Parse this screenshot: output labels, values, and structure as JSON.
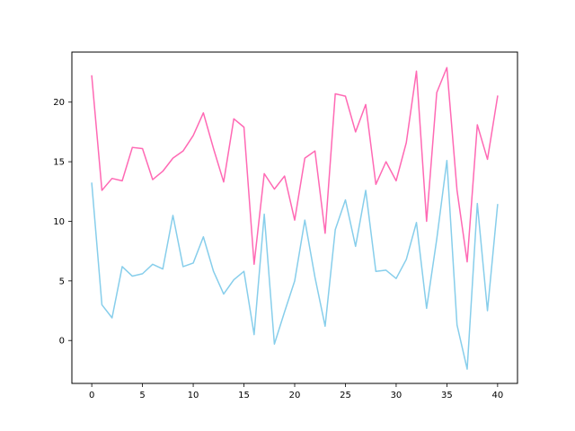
{
  "chart_data": {
    "type": "line",
    "title": "",
    "xlabel": "",
    "ylabel": "",
    "xlim": [
      -1.96,
      41.96
    ],
    "ylim": [
      -3.6,
      24.2
    ],
    "x_ticks": [
      0,
      5,
      10,
      15,
      20,
      25,
      30,
      35,
      40
    ],
    "y_ticks": [
      0,
      5,
      10,
      15,
      20
    ],
    "x_tick_labels": [
      "0",
      "5",
      "10",
      "15",
      "20",
      "25",
      "30",
      "35",
      "40"
    ],
    "y_tick_labels": [
      "0",
      "5",
      "10",
      "15",
      "20"
    ],
    "grid": false,
    "x": [
      0,
      1,
      2,
      3,
      4,
      5,
      6,
      7,
      8,
      9,
      10,
      11,
      12,
      13,
      14,
      15,
      16,
      17,
      18,
      19,
      20,
      21,
      22,
      23,
      24,
      25,
      26,
      27,
      28,
      29,
      30,
      31,
      32,
      33,
      34,
      35,
      36,
      37,
      38,
      39,
      40
    ],
    "series": [
      {
        "color": "#ff69b4",
        "values": [
          22.2,
          12.6,
          13.6,
          13.4,
          16.2,
          16.1,
          13.5,
          14.2,
          15.3,
          15.9,
          17.2,
          19.1,
          16.1,
          13.3,
          18.6,
          17.9,
          6.4,
          14.0,
          12.7,
          13.8,
          10.1,
          15.3,
          15.9,
          9.0,
          20.7,
          20.5,
          17.5,
          19.8,
          13.1,
          15.0,
          13.4,
          16.6,
          22.6,
          10.0,
          20.8,
          22.9,
          12.6,
          6.6,
          18.1,
          15.2,
          20.5
        ]
      },
      {
        "color": "#87ceeb",
        "values": [
          13.2,
          3.0,
          1.9,
          6.2,
          5.4,
          5.6,
          6.4,
          6.0,
          10.5,
          6.2,
          6.5,
          8.7,
          5.8,
          3.9,
          5.1,
          5.8,
          0.5,
          10.6,
          -0.3,
          2.4,
          5.0,
          10.1,
          5.3,
          1.2,
          9.3,
          11.8,
          7.9,
          12.6,
          5.8,
          5.9,
          5.2,
          6.8,
          9.9,
          2.7,
          8.5,
          15.1,
          1.3,
          -2.4,
          11.5,
          2.5,
          11.4
        ]
      }
    ]
  }
}
